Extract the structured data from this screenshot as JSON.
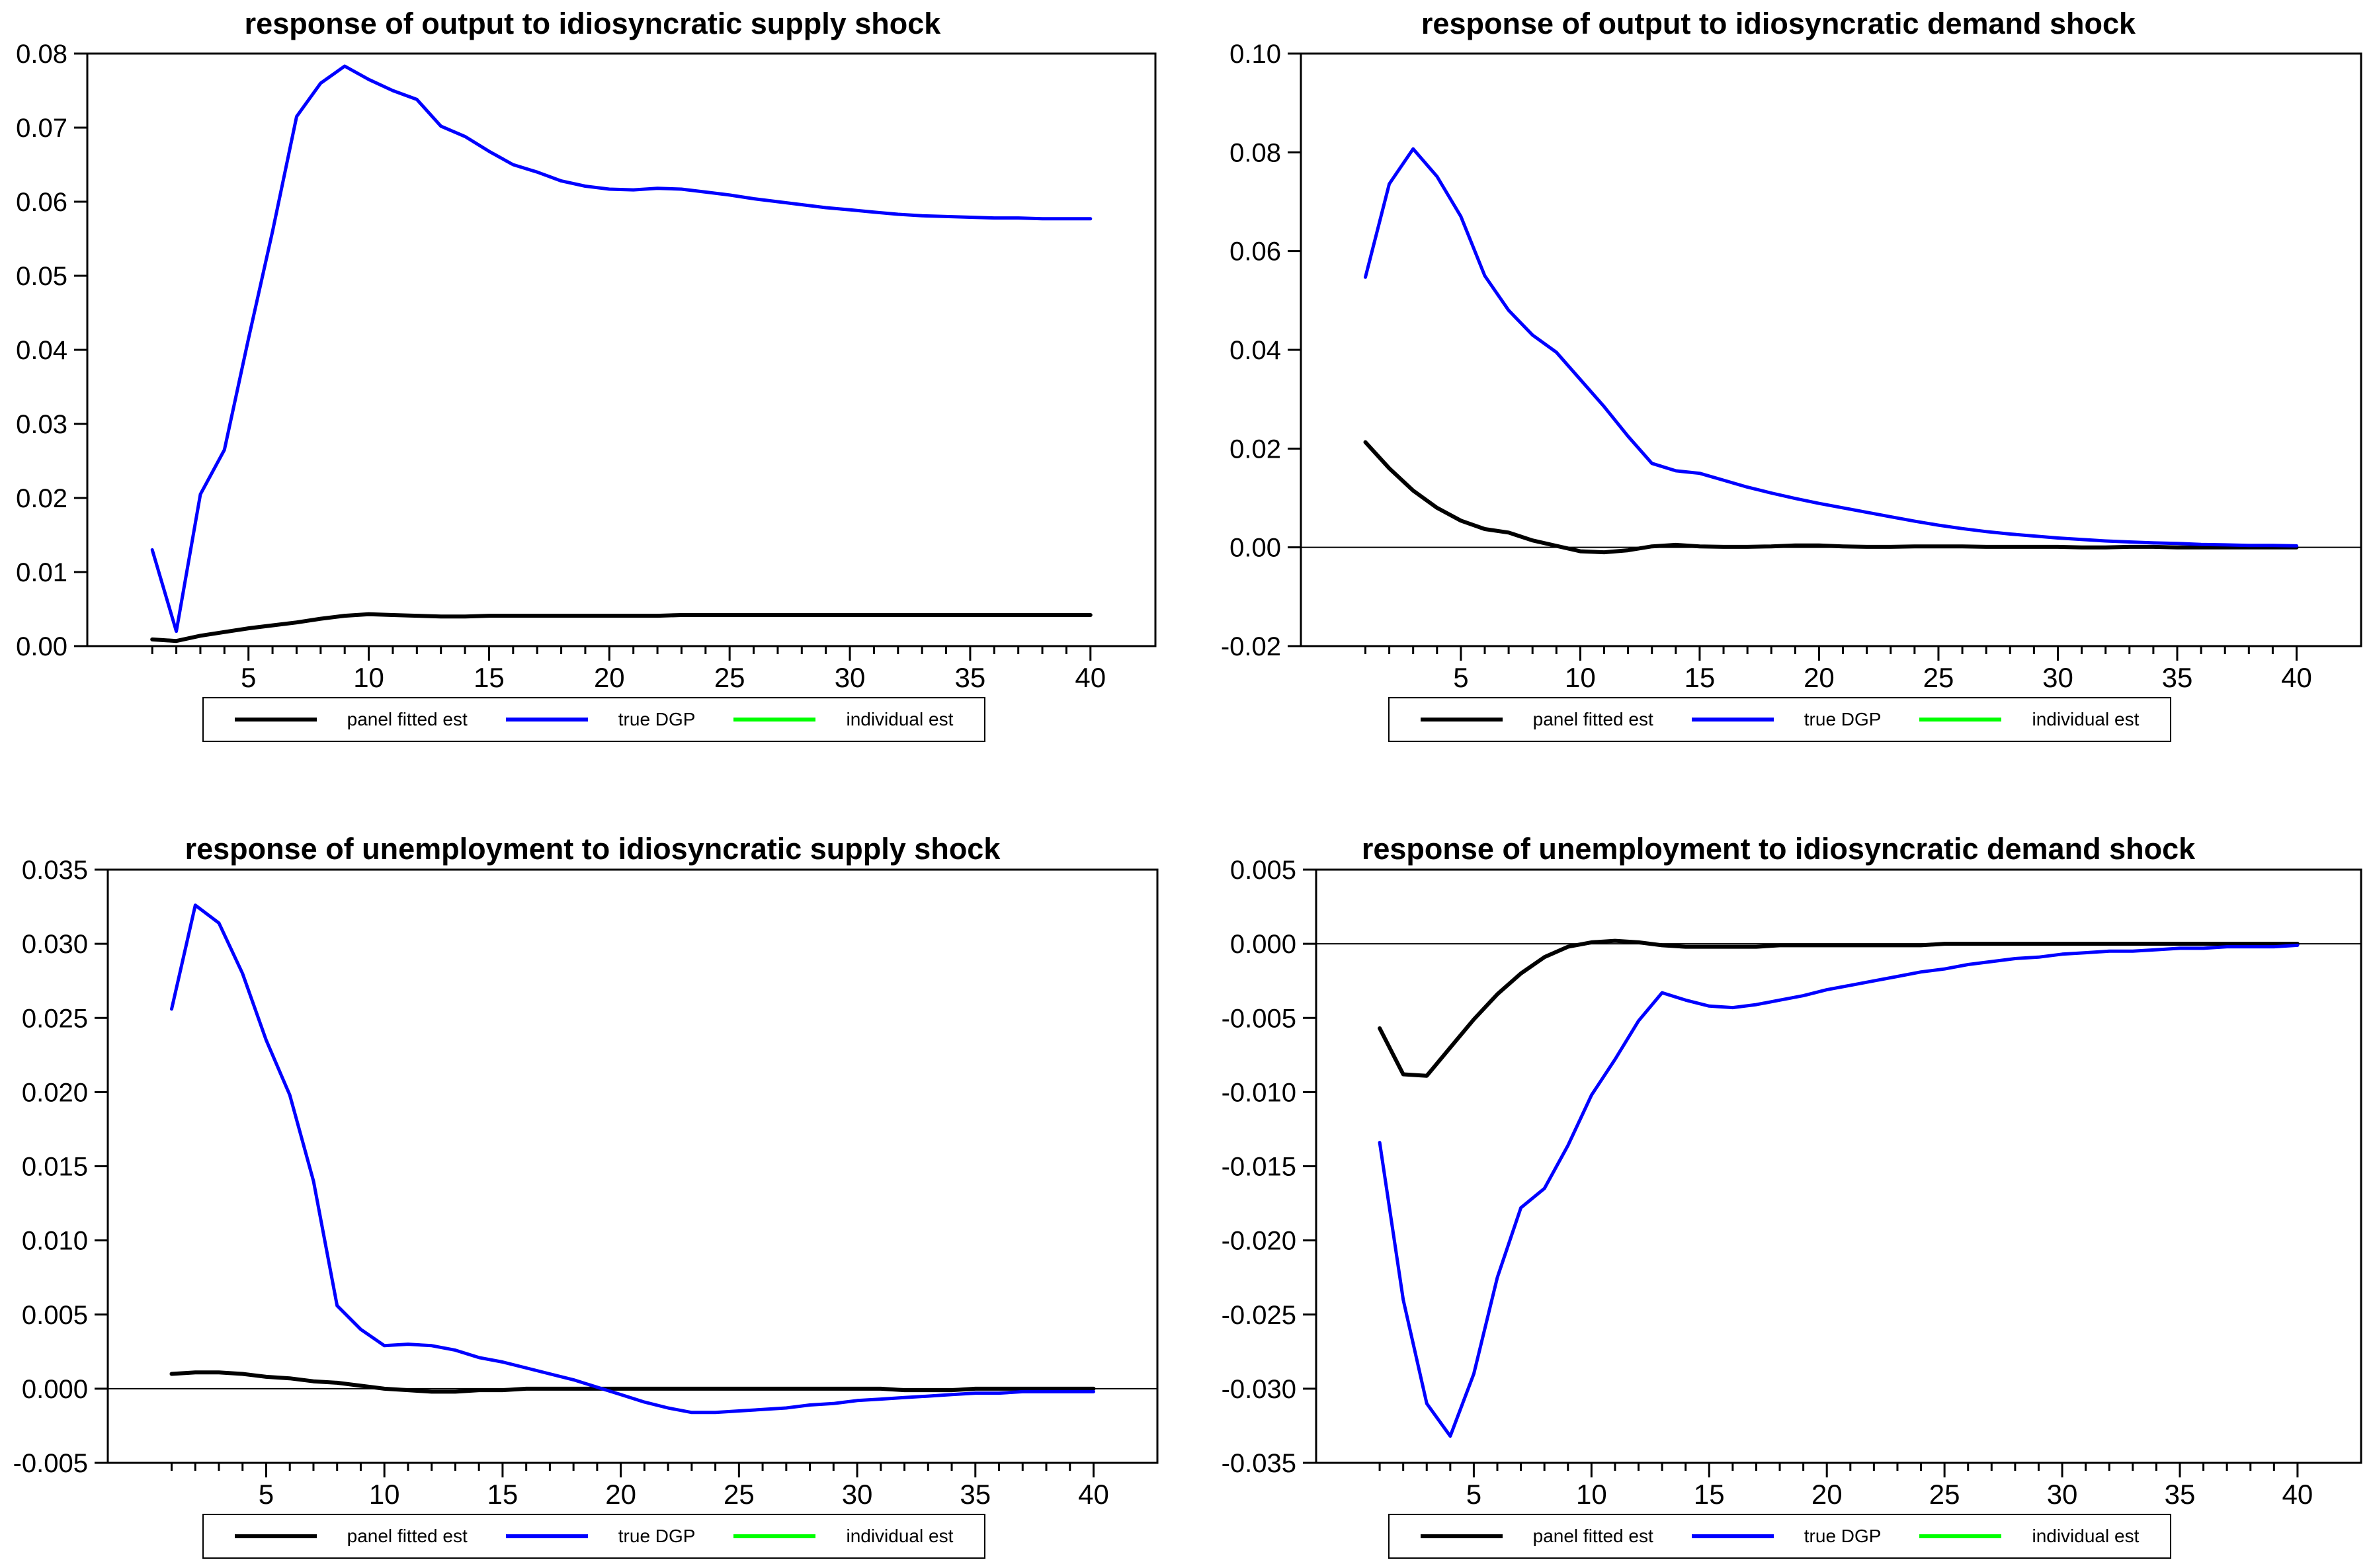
{
  "page": {
    "background": "#ffffff"
  },
  "legend": {
    "items": [
      {
        "label": "panel fitted est",
        "color": "#000000"
      },
      {
        "label": "true DGP",
        "color": "#0000ff"
      },
      {
        "label": "individual est",
        "color": "#00ff00"
      }
    ]
  },
  "chart_data": [
    {
      "type": "line",
      "title": "response of output to idiosyncratic supply shock",
      "xlabel": "",
      "ylabel": "",
      "x_start": 1,
      "x_end": 40,
      "x_minor_step": 1,
      "xlim": [
        -1.7,
        42.7
      ],
      "x_major_ticks": [
        5,
        10,
        15,
        20,
        25,
        30,
        35,
        40
      ],
      "ylim": [
        0.0,
        0.08
      ],
      "zero_line": false,
      "grid": false,
      "legend_position": "bottom",
      "yticks": [
        {
          "v": 0.08,
          "label": "0.08"
        },
        {
          "v": 0.07,
          "label": "0.07"
        },
        {
          "v": 0.06,
          "label": "0.06"
        },
        {
          "v": 0.05,
          "label": "0.05"
        },
        {
          "v": 0.04,
          "label": "0.04"
        },
        {
          "v": 0.03,
          "label": "0.03"
        },
        {
          "v": 0.02,
          "label": "0.02"
        },
        {
          "v": 0.01,
          "label": "0.01"
        },
        {
          "v": 0.0,
          "label": "0.00"
        }
      ],
      "series": [
        {
          "name": "panel fitted est",
          "color": "#000000",
          "width": 6,
          "values": [
            0.0009,
            0.0007,
            0.0014,
            0.0019,
            0.0024,
            0.0028,
            0.0032,
            0.0037,
            0.0041,
            0.0043,
            0.0042,
            0.0041,
            0.004,
            0.004,
            0.0041,
            0.0041,
            0.0041,
            0.0041,
            0.0041,
            0.0041,
            0.0041,
            0.0041,
            0.0042,
            0.0042,
            0.0042,
            0.0042,
            0.0042,
            0.0042,
            0.0042,
            0.0042,
            0.0042,
            0.0042,
            0.0042,
            0.0042,
            0.0042,
            0.0042,
            0.0042,
            0.0042,
            0.0042,
            0.0042
          ]
        },
        {
          "name": "true DGP",
          "color": "#0000ff",
          "width": 5,
          "values": [
            0.013,
            0.002,
            0.0205,
            0.0265,
            0.0415,
            0.056,
            0.0715,
            0.076,
            0.0783,
            0.0765,
            0.075,
            0.0738,
            0.0702,
            0.0688,
            0.0668,
            0.065,
            0.064,
            0.0628,
            0.0621,
            0.0617,
            0.0616,
            0.0618,
            0.0617,
            0.0613,
            0.0609,
            0.0604,
            0.06,
            0.0596,
            0.0592,
            0.0589,
            0.0586,
            0.0583,
            0.0581,
            0.058,
            0.0579,
            0.0578,
            0.0578,
            0.0577,
            0.0577,
            0.0577
          ]
        }
      ]
    },
    {
      "type": "line",
      "title": "response of output to idiosyncratic demand shock",
      "xlabel": "",
      "ylabel": "",
      "x_start": 1,
      "x_end": 40,
      "x_minor_step": 1,
      "xlim": [
        -1.7,
        42.7
      ],
      "x_major_ticks": [
        5,
        10,
        15,
        20,
        25,
        30,
        35,
        40
      ],
      "ylim": [
        -0.02,
        0.1
      ],
      "zero_line": true,
      "grid": false,
      "legend_position": "bottom",
      "yticks": [
        {
          "v": 0.1,
          "label": "0.10"
        },
        {
          "v": 0.08,
          "label": "0.08"
        },
        {
          "v": 0.06,
          "label": "0.06"
        },
        {
          "v": 0.04,
          "label": "0.04"
        },
        {
          "v": 0.02,
          "label": "0.02"
        },
        {
          "v": 0.0,
          "label": "0.00"
        },
        {
          "v": -0.02,
          "label": "-0.02"
        }
      ],
      "series": [
        {
          "name": "panel fitted est",
          "color": "#000000",
          "width": 6,
          "values": [
            0.0213,
            0.016,
            0.0115,
            0.008,
            0.0054,
            0.0037,
            0.003,
            0.0014,
            0.0003,
            -0.0008,
            -0.001,
            -0.0006,
            0.0002,
            0.0005,
            0.0002,
            0.0001,
            0.0001,
            0.0002,
            0.0004,
            0.0004,
            0.0002,
            0.0001,
            0.0001,
            0.0002,
            0.0002,
            0.0002,
            0.0001,
            0.0001,
            0.0001,
            0.0001,
            0.0,
            0.0,
            0.0001,
            0.0001,
            0.0,
            0.0,
            0.0,
            0.0,
            0.0,
            0.0
          ]
        },
        {
          "name": "true DGP",
          "color": "#0000ff",
          "width": 5,
          "values": [
            0.0547,
            0.0736,
            0.0807,
            0.0751,
            0.067,
            0.055,
            0.048,
            0.043,
            0.0395,
            0.034,
            0.0285,
            0.0225,
            0.017,
            0.0155,
            0.015,
            0.0136,
            0.0122,
            0.011,
            0.0099,
            0.0089,
            0.008,
            0.0071,
            0.0062,
            0.0053,
            0.0045,
            0.0038,
            0.0032,
            0.0027,
            0.0023,
            0.0019,
            0.0016,
            0.0013,
            0.0011,
            0.0009,
            0.0008,
            0.0006,
            0.0005,
            0.0004,
            0.0004,
            0.0003
          ]
        }
      ]
    },
    {
      "type": "line",
      "title": "response of unemployment to idiosyncratic supply shock",
      "xlabel": "",
      "ylabel": "",
      "x_start": 1,
      "x_end": 40,
      "x_minor_step": 1,
      "xlim": [
        -1.7,
        42.7
      ],
      "x_major_ticks": [
        5,
        10,
        15,
        20,
        25,
        30,
        35,
        40
      ],
      "ylim": [
        -0.005,
        0.035
      ],
      "zero_line": true,
      "grid": false,
      "legend_position": "bottom",
      "yticks": [
        {
          "v": 0.035,
          "label": "0.035"
        },
        {
          "v": 0.03,
          "label": "0.030"
        },
        {
          "v": 0.025,
          "label": "0.025"
        },
        {
          "v": 0.02,
          "label": "0.020"
        },
        {
          "v": 0.015,
          "label": "0.015"
        },
        {
          "v": 0.01,
          "label": "0.010"
        },
        {
          "v": 0.005,
          "label": "0.005"
        },
        {
          "v": 0.0,
          "label": "0.000"
        },
        {
          "v": -0.005,
          "label": "-0.005"
        }
      ],
      "series": [
        {
          "name": "panel fitted est",
          "color": "#000000",
          "width": 6,
          "values": [
            0.001,
            0.0011,
            0.0011,
            0.001,
            0.0008,
            0.0007,
            0.0005,
            0.0004,
            0.0002,
            0.0,
            -0.0001,
            -0.0002,
            -0.0002,
            -0.0001,
            -0.0001,
            0.0,
            0.0,
            0.0,
            0.0,
            0.0,
            0.0,
            0.0,
            0.0,
            0.0,
            0.0,
            0.0,
            0.0,
            0.0,
            0.0,
            0.0,
            0.0,
            -0.0001,
            -0.0001,
            -0.0001,
            0.0,
            0.0,
            0.0,
            0.0,
            0.0,
            0.0
          ]
        },
        {
          "name": "true DGP",
          "color": "#0000ff",
          "width": 5,
          "values": [
            0.0256,
            0.0326,
            0.0314,
            0.028,
            0.0235,
            0.0198,
            0.014,
            0.0056,
            0.004,
            0.0029,
            0.003,
            0.0029,
            0.0026,
            0.0021,
            0.0018,
            0.0014,
            0.001,
            0.0006,
            0.0001,
            -0.0004,
            -0.0009,
            -0.0013,
            -0.0016,
            -0.0016,
            -0.0015,
            -0.0014,
            -0.0013,
            -0.0011,
            -0.001,
            -0.0008,
            -0.0007,
            -0.0006,
            -0.0005,
            -0.0004,
            -0.0003,
            -0.0003,
            -0.0002,
            -0.0002,
            -0.0002,
            -0.0002
          ]
        }
      ]
    },
    {
      "type": "line",
      "title": "response of unemployment to idiosyncratic demand shock",
      "xlabel": "",
      "ylabel": "",
      "x_start": 1,
      "x_end": 40,
      "x_minor_step": 1,
      "xlim": [
        -1.7,
        42.7
      ],
      "x_major_ticks": [
        5,
        10,
        15,
        20,
        25,
        30,
        35,
        40
      ],
      "ylim": [
        -0.035,
        0.005
      ],
      "zero_line": true,
      "grid": false,
      "legend_position": "bottom",
      "yticks": [
        {
          "v": 0.005,
          "label": "0.005"
        },
        {
          "v": 0.0,
          "label": "0.000"
        },
        {
          "v": -0.005,
          "label": "-0.005"
        },
        {
          "v": -0.01,
          "label": "-0.010"
        },
        {
          "v": -0.015,
          "label": "-0.015"
        },
        {
          "v": -0.02,
          "label": "-0.020"
        },
        {
          "v": -0.025,
          "label": "-0.025"
        },
        {
          "v": -0.03,
          "label": "-0.030"
        },
        {
          "v": -0.035,
          "label": "-0.035"
        }
      ],
      "series": [
        {
          "name": "panel fitted est",
          "color": "#000000",
          "width": 6,
          "values": [
            -0.0057,
            -0.0088,
            -0.0089,
            -0.007,
            -0.0051,
            -0.0034,
            -0.002,
            -0.0009,
            -0.0002,
            0.0001,
            0.0002,
            0.0001,
            -0.0001,
            -0.0002,
            -0.0002,
            -0.0002,
            -0.0002,
            -0.0001,
            -0.0001,
            -0.0001,
            -0.0001,
            -0.0001,
            -0.0001,
            -0.0001,
            0.0,
            0.0,
            0.0,
            0.0,
            0.0,
            0.0,
            0.0,
            0.0,
            0.0,
            0.0,
            0.0,
            0.0,
            0.0,
            0.0,
            0.0,
            0.0
          ]
        },
        {
          "name": "true DGP",
          "color": "#0000ff",
          "width": 5,
          "values": [
            -0.0134,
            -0.024,
            -0.031,
            -0.0332,
            -0.029,
            -0.0225,
            -0.0178,
            -0.0165,
            -0.0136,
            -0.0102,
            -0.0078,
            -0.0052,
            -0.0033,
            -0.0038,
            -0.0042,
            -0.0043,
            -0.0041,
            -0.0038,
            -0.0035,
            -0.0031,
            -0.0028,
            -0.0025,
            -0.0022,
            -0.0019,
            -0.0017,
            -0.0014,
            -0.0012,
            -0.001,
            -0.0009,
            -0.0007,
            -0.0006,
            -0.0005,
            -0.0005,
            -0.0004,
            -0.0003,
            -0.0003,
            -0.0002,
            -0.0002,
            -0.0002,
            -0.0001
          ]
        }
      ]
    }
  ]
}
